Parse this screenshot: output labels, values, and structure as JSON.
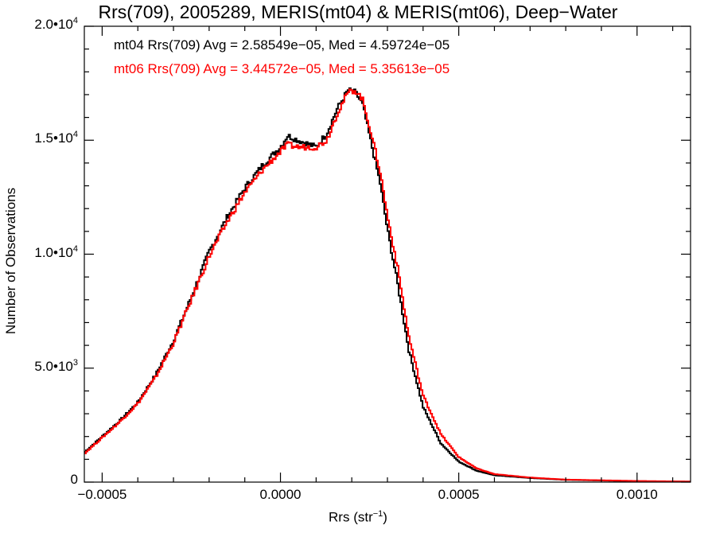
{
  "chart_data": {
    "type": "line",
    "title": "Rrs(709), 2005289, MERIS(mt04) & MERIS(mt06), Deep−Water",
    "xlabel": "Rrs (str",
    "xlabel_sup": "−1",
    "xlabel_close": ")",
    "ylabel": "Number of Observations",
    "xlim": [
      -0.00055,
      0.00115
    ],
    "ylim": [
      0,
      20000
    ],
    "x_ticks": [
      {
        "value": -0.0005,
        "label": "−0.0005"
      },
      {
        "value": 0.0,
        "label": "0.0000"
      },
      {
        "value": 0.0005,
        "label": "0.0005"
      },
      {
        "value": 0.001,
        "label": "0.0010"
      }
    ],
    "y_ticks": [
      {
        "value": 0,
        "mant": "0",
        "exp": ""
      },
      {
        "value": 5000,
        "mant": "5.0•10",
        "exp": "3"
      },
      {
        "value": 10000,
        "mant": "1.0•10",
        "exp": "4"
      },
      {
        "value": 15000,
        "mant": "1.5•10",
        "exp": "4"
      },
      {
        "value": 20000,
        "mant": "2.0•10",
        "exp": "4"
      }
    ],
    "legend": [
      {
        "text": "mt04 Rrs(709) Avg = 2.58549e−05, Med = 4.59724e−05",
        "color": "#000000"
      },
      {
        "text": "mt06 Rrs(709) Avg = 3.44572e−05, Med = 5.35613e−05",
        "color": "#ff0000"
      }
    ],
    "series": [
      {
        "color": "#000000",
        "x": [
          -0.00055,
          -0.0005,
          -0.00045,
          -0.0004,
          -0.00035,
          -0.0003,
          -0.00025,
          -0.0002,
          -0.00015,
          -0.0001,
          -5e-05,
          0.0,
          2e-05,
          5e-05,
          0.0001,
          0.00013,
          0.00016,
          0.00019,
          0.00021,
          0.00023,
          0.00025,
          0.00028,
          0.0003,
          0.00033,
          0.00036,
          0.0004,
          0.00045,
          0.0005,
          0.00055,
          0.0006,
          0.0007,
          0.0008,
          0.001,
          0.00115
        ],
        "values": [
          1300,
          2000,
          2700,
          3500,
          4700,
          6200,
          8100,
          10100,
          11600,
          12900,
          13900,
          14700,
          15200,
          15000,
          14700,
          15300,
          16400,
          17200,
          17100,
          16600,
          15200,
          13100,
          11100,
          8600,
          5800,
          3300,
          1700,
          900,
          500,
          300,
          180,
          100,
          40,
          20
        ]
      },
      {
        "color": "#ff0000",
        "x": [
          -0.00055,
          -0.0005,
          -0.00045,
          -0.0004,
          -0.00035,
          -0.0003,
          -0.00025,
          -0.0002,
          -0.00015,
          -0.0001,
          -5e-05,
          0.0,
          2e-05,
          5e-05,
          0.0001,
          0.00013,
          0.00016,
          0.00019,
          0.00021,
          0.00023,
          0.00025,
          0.00028,
          0.0003,
          0.00033,
          0.00036,
          0.0004,
          0.00045,
          0.0005,
          0.00055,
          0.0006,
          0.0007,
          0.0008,
          0.001,
          0.00115
        ],
        "values": [
          1250,
          1950,
          2650,
          3450,
          4600,
          6100,
          8000,
          9900,
          11400,
          12700,
          13700,
          14500,
          14800,
          14700,
          14700,
          15000,
          16200,
          17100,
          17200,
          16800,
          15600,
          13600,
          11700,
          9300,
          6400,
          3800,
          2100,
          1100,
          600,
          350,
          200,
          110,
          50,
          25
        ]
      }
    ]
  }
}
